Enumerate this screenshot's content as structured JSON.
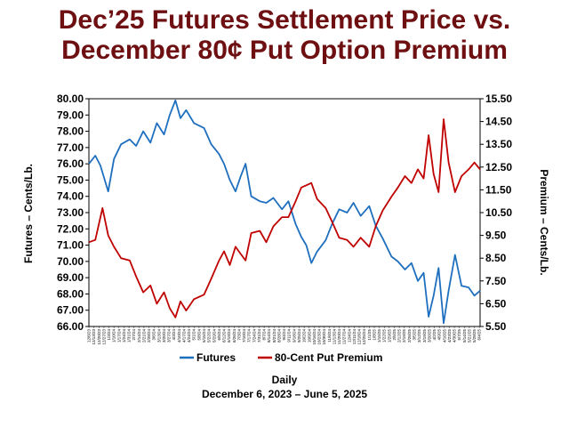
{
  "chart_data": {
    "type": "line",
    "title_line1": "Dec’25 Futures Settlement Price vs.",
    "title_line2": "December 80¢ Put Option Premium",
    "xlabel": "Daily",
    "xlabel_range": "December 6, 2023 – June 5, 2025",
    "ylabel_left": "Futures – Cents/Lb.",
    "ylabel_right": "Premium – Cents/Lb.",
    "y_left_lim": [
      66.0,
      80.0
    ],
    "y_right_lim": [
      5.5,
      15.5
    ],
    "y_left_ticks": [
      "80.00",
      "79.00",
      "78.00",
      "77.00",
      "76.00",
      "75.00",
      "74.00",
      "73.00",
      "72.00",
      "71.00",
      "70.00",
      "69.00",
      "68.00",
      "67.00",
      "66.00"
    ],
    "y_right_ticks": [
      "15.50",
      "14.50",
      "13.50",
      "12.50",
      "11.50",
      "10.50",
      "9.50",
      "8.50",
      "7.50",
      "6.50",
      "5.50"
    ],
    "x_range": [
      "2023-12-06",
      "2025-06-05"
    ],
    "grid": false,
    "legend_position": "bottom",
    "series": [
      {
        "name": "Futures",
        "color": "#1f6fbf",
        "axis": "left",
        "points": [
          [
            "2023-12-06",
            76.0
          ],
          [
            "2023-12-15",
            76.5
          ],
          [
            "2023-12-22",
            75.9
          ],
          [
            "2024-01-02",
            74.3
          ],
          [
            "2024-01-10",
            76.3
          ],
          [
            "2024-01-20",
            77.2
          ],
          [
            "2024-02-01",
            77.5
          ],
          [
            "2024-02-10",
            77.1
          ],
          [
            "2024-02-20",
            78.0
          ],
          [
            "2024-03-01",
            77.3
          ],
          [
            "2024-03-10",
            78.5
          ],
          [
            "2024-03-20",
            77.8
          ],
          [
            "2024-03-28",
            79.0
          ],
          [
            "2024-04-05",
            79.9
          ],
          [
            "2024-04-12",
            78.8
          ],
          [
            "2024-04-20",
            79.3
          ],
          [
            "2024-05-01",
            78.5
          ],
          [
            "2024-05-15",
            78.2
          ],
          [
            "2024-05-25",
            77.2
          ],
          [
            "2024-06-05",
            76.6
          ],
          [
            "2024-06-12",
            76.0
          ],
          [
            "2024-06-20",
            75.0
          ],
          [
            "2024-06-28",
            74.3
          ],
          [
            "2024-07-05",
            75.2
          ],
          [
            "2024-07-12",
            76.0
          ],
          [
            "2024-07-20",
            74.0
          ],
          [
            "2024-08-01",
            73.7
          ],
          [
            "2024-08-10",
            73.6
          ],
          [
            "2024-08-20",
            73.9
          ],
          [
            "2024-09-01",
            73.2
          ],
          [
            "2024-09-10",
            73.7
          ],
          [
            "2024-09-20",
            72.3
          ],
          [
            "2024-09-28",
            71.5
          ],
          [
            "2024-10-05",
            71.0
          ],
          [
            "2024-10-12",
            69.9
          ],
          [
            "2024-10-20",
            70.6
          ],
          [
            "2024-11-01",
            71.3
          ],
          [
            "2024-11-10",
            72.3
          ],
          [
            "2024-11-20",
            73.2
          ],
          [
            "2024-12-01",
            73.0
          ],
          [
            "2024-12-10",
            73.6
          ],
          [
            "2024-12-20",
            72.8
          ],
          [
            "2025-01-01",
            73.4
          ],
          [
            "2025-01-10",
            72.2
          ],
          [
            "2025-01-20",
            71.4
          ],
          [
            "2025-02-01",
            70.3
          ],
          [
            "2025-02-10",
            70.0
          ],
          [
            "2025-02-20",
            69.5
          ],
          [
            "2025-03-01",
            69.9
          ],
          [
            "2025-03-10",
            68.8
          ],
          [
            "2025-03-18",
            69.3
          ],
          [
            "2025-03-25",
            66.6
          ],
          [
            "2025-04-01",
            67.9
          ],
          [
            "2025-04-08",
            69.6
          ],
          [
            "2025-04-15",
            66.2
          ],
          [
            "2025-04-22",
            68.2
          ],
          [
            "2025-05-01",
            70.4
          ],
          [
            "2025-05-10",
            68.5
          ],
          [
            "2025-05-20",
            68.4
          ],
          [
            "2025-05-28",
            67.9
          ],
          [
            "2025-06-05",
            68.2
          ]
        ]
      },
      {
        "name": "80-Cent Put Premium",
        "color": "#c00000",
        "axis": "right",
        "points": [
          [
            "2023-12-06",
            9.2
          ],
          [
            "2023-12-15",
            9.3
          ],
          [
            "2023-12-25",
            10.7
          ],
          [
            "2024-01-02",
            9.5
          ],
          [
            "2024-01-10",
            9.0
          ],
          [
            "2024-01-20",
            8.5
          ],
          [
            "2024-02-01",
            8.4
          ],
          [
            "2024-02-10",
            7.7
          ],
          [
            "2024-02-20",
            7.0
          ],
          [
            "2024-03-01",
            7.3
          ],
          [
            "2024-03-10",
            6.5
          ],
          [
            "2024-03-20",
            7.0
          ],
          [
            "2024-03-28",
            6.3
          ],
          [
            "2024-04-05",
            5.9
          ],
          [
            "2024-04-12",
            6.6
          ],
          [
            "2024-04-20",
            6.2
          ],
          [
            "2024-05-01",
            6.7
          ],
          [
            "2024-05-15",
            6.9
          ],
          [
            "2024-05-25",
            7.6
          ],
          [
            "2024-06-05",
            8.4
          ],
          [
            "2024-06-12",
            8.8
          ],
          [
            "2024-06-20",
            8.2
          ],
          [
            "2024-06-28",
            9.0
          ],
          [
            "2024-07-05",
            8.7
          ],
          [
            "2024-07-12",
            8.4
          ],
          [
            "2024-07-20",
            9.6
          ],
          [
            "2024-08-01",
            9.7
          ],
          [
            "2024-08-10",
            9.2
          ],
          [
            "2024-08-20",
            9.9
          ],
          [
            "2024-09-01",
            10.3
          ],
          [
            "2024-09-10",
            10.3
          ],
          [
            "2024-09-20",
            11.0
          ],
          [
            "2024-09-28",
            11.6
          ],
          [
            "2024-10-05",
            11.7
          ],
          [
            "2024-10-12",
            11.8
          ],
          [
            "2024-10-20",
            11.1
          ],
          [
            "2024-11-01",
            10.7
          ],
          [
            "2024-11-10",
            10.1
          ],
          [
            "2024-11-20",
            9.4
          ],
          [
            "2024-12-01",
            9.3
          ],
          [
            "2024-12-10",
            9.0
          ],
          [
            "2024-12-20",
            9.4
          ],
          [
            "2025-01-01",
            9.0
          ],
          [
            "2025-01-10",
            9.9
          ],
          [
            "2025-01-20",
            10.6
          ],
          [
            "2025-02-01",
            11.2
          ],
          [
            "2025-02-10",
            11.6
          ],
          [
            "2025-02-20",
            12.1
          ],
          [
            "2025-03-01",
            11.8
          ],
          [
            "2025-03-10",
            12.4
          ],
          [
            "2025-03-18",
            12.0
          ],
          [
            "2025-03-25",
            13.9
          ],
          [
            "2025-04-01",
            12.2
          ],
          [
            "2025-04-08",
            11.4
          ],
          [
            "2025-04-15",
            14.6
          ],
          [
            "2025-04-22",
            12.7
          ],
          [
            "2025-05-01",
            11.4
          ],
          [
            "2025-05-10",
            12.1
          ],
          [
            "2025-05-20",
            12.4
          ],
          [
            "2025-05-28",
            12.7
          ],
          [
            "2025-06-05",
            12.4
          ]
        ]
      }
    ]
  }
}
